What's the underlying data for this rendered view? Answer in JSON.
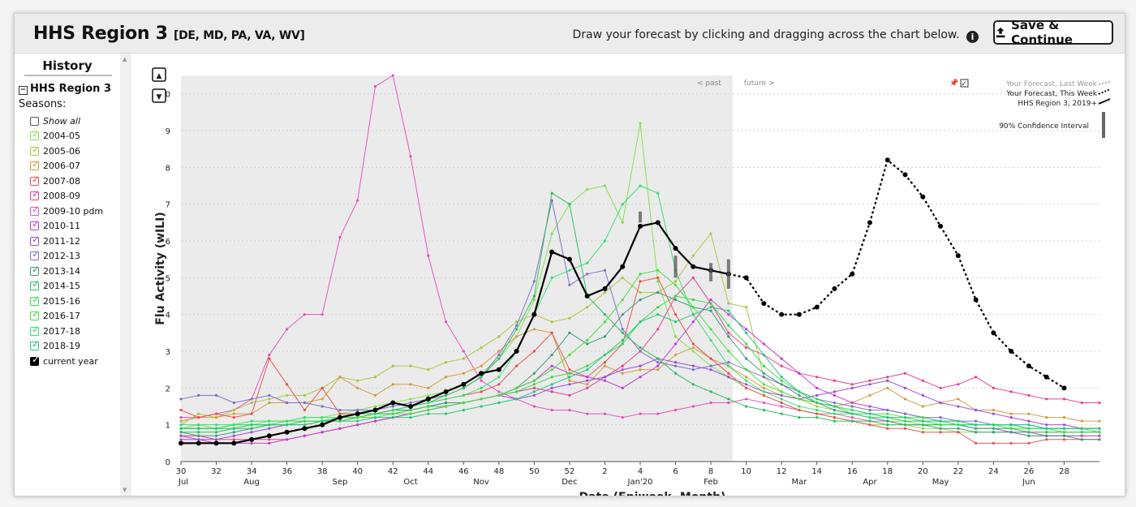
{
  "header": {
    "title": "HHS Region 3",
    "states": "[DE, MD, PA, VA, WV]",
    "instruction": "Draw your forecast by clicking and dragging across the chart below.",
    "save_label": "Save & Continue"
  },
  "sidebar": {
    "title": "History",
    "region": "HHS Region 3",
    "seasons_label": "Seasons:",
    "show_all": "Show all",
    "seasons": [
      {
        "label": "2004-05",
        "color": "#7fe04a",
        "checked": true
      },
      {
        "label": "2005-06",
        "color": "#a6c83c",
        "checked": true
      },
      {
        "label": "2006-07",
        "color": "#d49a3a",
        "checked": true
      },
      {
        "label": "2007-08",
        "color": "#e8504a",
        "checked": true
      },
      {
        "label": "2008-09",
        "color": "#e83c8c",
        "checked": true
      },
      {
        "label": "2009-10 pdm",
        "color": "#e64fc0",
        "checked": true
      },
      {
        "label": "2010-11",
        "color": "#c03ad8",
        "checked": true
      },
      {
        "label": "2011-12",
        "color": "#9b4ad8",
        "checked": true
      },
      {
        "label": "2012-13",
        "color": "#7a6ec8",
        "checked": true
      },
      {
        "label": "2013-14",
        "color": "#3a9a78",
        "checked": true
      },
      {
        "label": "2014-15",
        "color": "#28c058",
        "checked": true
      },
      {
        "label": "2015-16",
        "color": "#3ad848",
        "checked": true
      },
      {
        "label": "2016-17",
        "color": "#46e03c",
        "checked": true
      },
      {
        "label": "2017-18",
        "color": "#2ee070",
        "checked": true
      },
      {
        "label": "2018-19",
        "color": "#22c87a",
        "checked": true
      },
      {
        "label": "current year",
        "color": "#000000",
        "checked": true
      }
    ]
  },
  "chart_data": {
    "type": "line",
    "title": "",
    "xlabel": "Date (Epiweek, Month)",
    "ylabel": "Flu Activity (wILI)",
    "ylim": [
      0,
      10.5
    ],
    "xlim": [
      30,
      29
    ],
    "grid": "horizontal dotted",
    "x_ticks": [
      "30",
      "32",
      "34",
      "36",
      "38",
      "40",
      "42",
      "44",
      "46",
      "48",
      "50",
      "52",
      "2",
      "4",
      "6",
      "8",
      "10",
      "12",
      "14",
      "16",
      "18",
      "20",
      "22",
      "24",
      "26",
      "28"
    ],
    "month_labels": [
      "Jul",
      "Aug",
      "Sep",
      "Oct",
      "Nov",
      "Dec",
      "Jan'20",
      "Feb",
      "Mar",
      "Apr",
      "May",
      "Jun"
    ],
    "y_ticks": [
      0,
      1,
      2,
      3,
      4,
      5,
      6,
      7,
      8,
      9,
      10
    ],
    "region_labels": {
      "past": "< past",
      "future": "future >"
    },
    "legend": {
      "last_week": "Your Forecast, Last Week",
      "this_week": "Your Forecast, This Week",
      "observed": "HHS Region 3, 2019+",
      "ci": "90% Confidence Interval"
    },
    "series": [
      {
        "name": "2009-10 pdm",
        "color": "#e64fc0",
        "values": [
          1.2,
          1.2,
          1.3,
          1.4,
          1.7,
          2.9,
          3.6,
          4.0,
          4.0,
          6.1,
          7.1,
          10.2,
          10.5,
          8.3,
          5.6,
          3.8,
          3.0,
          2.2,
          1.9,
          1.7,
          1.5,
          1.4,
          1.4,
          1.3,
          1.3,
          1.2,
          1.3,
          1.3,
          1.4,
          1.5,
          1.6,
          1.6,
          1.7,
          1.6,
          1.5,
          1.4,
          1.3,
          1.3,
          1.2,
          1.1,
          1.1,
          1.0,
          1.0,
          1.0,
          1.0,
          1.0,
          1.0,
          1.0,
          0.9,
          0.9,
          0.9,
          0.9,
          0.9
        ]
      },
      {
        "name": "2004-05",
        "color": "#7fe04a",
        "values": [
          0.9,
          1.0,
          0.9,
          1.0,
          1.0,
          1.1,
          1.1,
          1.2,
          1.2,
          1.3,
          1.4,
          1.5,
          1.6,
          1.7,
          1.8,
          1.9,
          2.1,
          2.4,
          2.8,
          3.4,
          4.4,
          6.2,
          7.0,
          7.4,
          7.5,
          6.5,
          9.2,
          4.9,
          3.4,
          3.0,
          2.6,
          2.3,
          2.0,
          1.8,
          1.6,
          1.4,
          1.3,
          1.2,
          1.1,
          1.0,
          1.0,
          1.0,
          0.9,
          0.9,
          0.8,
          0.8,
          0.8,
          0.8,
          0.7,
          0.7,
          0.7,
          0.7,
          0.7
        ]
      },
      {
        "name": "2005-06",
        "color": "#a6c83c",
        "values": [
          1.0,
          1.3,
          1.2,
          1.4,
          1.6,
          1.7,
          1.8,
          1.8,
          2.0,
          2.3,
          2.2,
          2.3,
          2.6,
          2.6,
          2.5,
          2.7,
          2.8,
          3.1,
          3.4,
          3.8,
          4.0,
          3.8,
          3.9,
          4.2,
          4.6,
          5.0,
          4.6,
          4.6,
          4.9,
          5.6,
          6.2,
          4.3,
          4.2,
          2.3,
          1.9,
          1.7,
          1.5,
          1.4,
          1.3,
          1.2,
          1.1,
          1.1,
          1.0,
          1.0,
          1.0,
          0.9,
          0.9,
          0.9,
          0.8,
          0.8,
          0.8,
          0.8,
          0.8
        ]
      },
      {
        "name": "2006-07",
        "color": "#d49a3a",
        "values": [
          1.1,
          1.2,
          1.2,
          1.3,
          1.3,
          1.6,
          1.6,
          1.6,
          1.7,
          2.3,
          2.0,
          1.8,
          2.1,
          2.1,
          2.0,
          2.3,
          2.4,
          2.6,
          3.0,
          3.4,
          3.6,
          3.5,
          2.2,
          2.1,
          2.6,
          2.4,
          2.5,
          2.5,
          2.9,
          3.1,
          2.8,
          2.6,
          2.3,
          2.0,
          1.8,
          1.7,
          1.6,
          1.5,
          1.6,
          1.8,
          2.0,
          1.7,
          1.5,
          1.6,
          1.7,
          1.4,
          1.4,
          1.3,
          1.3,
          1.2,
          1.2,
          1.1,
          1.1
        ]
      },
      {
        "name": "2007-08",
        "color": "#e8504a",
        "values": [
          1.4,
          1.2,
          1.3,
          1.2,
          1.3,
          2.8,
          2.1,
          1.4,
          2.0,
          1.3,
          1.3,
          1.3,
          1.4,
          1.5,
          1.6,
          1.7,
          1.8,
          1.9,
          2.1,
          2.6,
          3.0,
          3.5,
          2.5,
          2.3,
          2.7,
          3.2,
          4.9,
          5.0,
          4.0,
          3.2,
          2.8,
          2.4,
          2.0,
          1.8,
          1.6,
          1.4,
          1.3,
          1.2,
          1.1,
          1.0,
          0.9,
          0.9,
          0.8,
          0.8,
          0.8,
          0.5,
          0.5,
          0.5,
          0.5,
          0.6,
          0.6,
          0.6,
          0.6
        ]
      },
      {
        "name": "2008-09",
        "color": "#e83c8c",
        "values": [
          0.7,
          0.7,
          0.6,
          0.6,
          0.6,
          0.6,
          0.6,
          0.7,
          0.8,
          0.9,
          1.0,
          1.1,
          1.2,
          1.3,
          1.4,
          1.5,
          1.6,
          1.7,
          1.8,
          1.9,
          2.0,
          1.9,
          1.8,
          2.0,
          2.3,
          2.6,
          3.0,
          3.6,
          4.5,
          5.0,
          4.3,
          3.5,
          3.1,
          2.9,
          2.6,
          2.4,
          2.3,
          2.2,
          2.1,
          2.2,
          2.3,
          2.4,
          2.2,
          2.0,
          2.1,
          2.3,
          2.0,
          1.9,
          1.8,
          1.7,
          1.7,
          1.6,
          1.6
        ]
      },
      {
        "name": "2010-11",
        "color": "#c03ad8",
        "values": [
          0.7,
          0.6,
          0.5,
          0.5,
          0.5,
          0.5,
          0.6,
          0.7,
          0.8,
          0.9,
          1.0,
          1.1,
          1.2,
          1.3,
          1.4,
          1.5,
          1.6,
          1.7,
          1.8,
          2.0,
          2.2,
          2.6,
          2.4,
          2.3,
          2.2,
          2.0,
          2.3,
          2.6,
          3.2,
          3.8,
          4.4,
          4.0,
          3.6,
          3.2,
          2.8,
          2.4,
          2.0,
          1.8,
          1.6,
          1.5,
          1.4,
          1.3,
          1.2,
          1.1,
          1.0,
          0.9,
          0.9,
          0.8,
          0.8,
          0.7,
          0.7,
          0.7,
          0.7
        ]
      },
      {
        "name": "2011-12",
        "color": "#9b4ad8",
        "values": [
          0.6,
          0.6,
          0.6,
          0.7,
          0.8,
          0.9,
          1.0,
          1.0,
          1.1,
          1.1,
          1.2,
          1.3,
          1.3,
          1.4,
          1.5,
          1.6,
          1.6,
          1.7,
          1.8,
          1.7,
          1.8,
          2.0,
          2.1,
          2.2,
          2.3,
          2.5,
          2.6,
          2.8,
          2.7,
          2.6,
          2.5,
          2.3,
          2.1,
          1.9,
          1.8,
          1.7,
          1.8,
          1.9,
          2.0,
          2.1,
          2.2,
          2.0,
          1.8,
          1.6,
          1.5,
          1.4,
          1.3,
          1.2,
          1.1,
          1.0,
          1.0,
          0.9,
          0.9
        ]
      },
      {
        "name": "2012-13",
        "color": "#7a6ec8",
        "values": [
          1.7,
          1.8,
          1.8,
          1.6,
          1.7,
          1.8,
          1.6,
          1.6,
          1.5,
          1.4,
          1.4,
          1.4,
          1.5,
          1.6,
          1.7,
          1.8,
          2.0,
          2.3,
          2.9,
          3.7,
          4.9,
          7.1,
          4.8,
          5.1,
          5.2,
          3.6,
          3.0,
          2.7,
          2.6,
          2.5,
          2.6,
          2.7,
          2.5,
          2.3,
          2.1,
          1.9,
          1.7,
          1.6,
          1.5,
          1.4,
          1.4,
          1.3,
          1.2,
          1.2,
          1.1,
          1.1,
          1.0,
          1.0,
          1.0,
          0.9,
          0.9,
          0.9,
          0.9
        ]
      },
      {
        "name": "2013-14",
        "color": "#3a9a78",
        "values": [
          0.8,
          0.7,
          0.7,
          0.8,
          0.9,
          1.0,
          1.0,
          1.1,
          1.1,
          1.2,
          1.2,
          1.3,
          1.4,
          1.4,
          1.5,
          1.6,
          1.6,
          1.7,
          1.8,
          2.0,
          2.4,
          2.9,
          3.5,
          3.2,
          3.4,
          4.0,
          4.4,
          4.6,
          4.4,
          4.2,
          4.1,
          3.4,
          2.8,
          2.4,
          2.1,
          1.8,
          1.6,
          1.4,
          1.3,
          1.2,
          1.1,
          1.0,
          1.0,
          0.9,
          0.9,
          0.8,
          0.8,
          0.8,
          0.7,
          0.7,
          0.7,
          0.6,
          0.6
        ]
      },
      {
        "name": "2014-15",
        "color": "#28c058",
        "values": [
          0.8,
          0.8,
          0.8,
          0.9,
          0.9,
          1.0,
          1.0,
          1.1,
          1.1,
          1.2,
          1.2,
          1.3,
          1.4,
          1.5,
          1.6,
          1.8,
          2.0,
          2.3,
          2.8,
          3.6,
          4.5,
          7.3,
          7.0,
          4.5,
          4.0,
          3.5,
          3.1,
          2.8,
          2.4,
          2.1,
          1.9,
          1.7,
          1.5,
          1.4,
          1.3,
          1.2,
          1.2,
          1.1,
          1.1,
          1.1,
          1.0,
          1.0,
          1.0,
          1.0,
          1.0,
          0.9,
          0.9,
          0.9,
          0.8,
          0.8,
          0.8,
          0.8,
          0.8
        ]
      },
      {
        "name": "2015-16",
        "color": "#3ad848",
        "values": [
          0.9,
          0.9,
          0.9,
          1.0,
          1.0,
          1.0,
          1.1,
          1.1,
          1.1,
          1.2,
          1.2,
          1.3,
          1.3,
          1.4,
          1.5,
          1.5,
          1.6,
          1.7,
          1.8,
          1.9,
          2.1,
          2.3,
          2.4,
          2.6,
          2.9,
          3.2,
          3.8,
          4.2,
          4.5,
          4.4,
          4.3,
          3.7,
          3.2,
          2.6,
          2.2,
          1.9,
          1.7,
          1.5,
          1.4,
          1.3,
          1.2,
          1.1,
          1.1,
          1.0,
          1.0,
          1.0,
          1.0,
          0.9,
          0.9,
          0.9,
          0.8,
          0.8,
          0.8
        ]
      },
      {
        "name": "2016-17",
        "color": "#46e03c",
        "values": [
          0.9,
          0.9,
          0.9,
          1.0,
          1.0,
          1.0,
          1.0,
          1.1,
          1.1,
          1.1,
          1.2,
          1.2,
          1.3,
          1.3,
          1.4,
          1.5,
          1.6,
          1.7,
          1.8,
          2.0,
          2.2,
          2.5,
          2.9,
          3.3,
          3.8,
          4.4,
          5.1,
          5.2,
          4.8,
          4.2,
          3.6,
          3.0,
          2.5,
          2.1,
          1.9,
          1.7,
          1.6,
          1.5,
          1.4,
          1.3,
          1.3,
          1.2,
          1.2,
          1.1,
          1.1,
          1.0,
          1.0,
          1.0,
          0.9,
          0.9,
          0.9,
          0.9,
          0.8
        ]
      },
      {
        "name": "2017-18",
        "color": "#2ee070",
        "values": [
          1.0,
          1.0,
          1.0,
          1.0,
          1.1,
          1.1,
          1.1,
          1.2,
          1.2,
          1.2,
          1.3,
          1.3,
          1.4,
          1.5,
          1.6,
          1.7,
          1.8,
          2.0,
          2.3,
          3.0,
          4.0,
          5.0,
          5.2,
          5.4,
          6.0,
          7.0,
          7.5,
          7.3,
          5.2,
          4.0,
          3.3,
          2.6,
          2.2,
          1.9,
          1.7,
          1.5,
          1.4,
          1.3,
          1.3,
          1.2,
          1.2,
          1.1,
          1.1,
          1.1,
          1.0,
          1.0,
          1.0,
          1.0,
          0.9,
          0.9,
          0.9,
          0.9,
          0.9
        ]
      },
      {
        "name": "2018-19",
        "color": "#22c87a",
        "values": [
          0.9,
          0.9,
          0.9,
          0.9,
          1.0,
          1.0,
          1.0,
          1.0,
          1.1,
          1.1,
          1.1,
          1.2,
          1.2,
          1.2,
          1.3,
          1.3,
          1.4,
          1.5,
          1.6,
          1.7,
          1.9,
          2.1,
          2.3,
          2.5,
          2.9,
          3.3,
          3.8,
          4.0,
          3.8,
          4.0,
          4.2,
          4.1,
          3.5,
          2.9,
          2.3,
          1.9,
          1.6,
          1.5,
          1.3,
          1.3,
          1.2,
          1.2,
          1.1,
          1.1,
          1.1,
          1.0,
          1.0,
          1.0,
          1.0,
          0.9,
          0.9,
          0.9,
          0.9
        ]
      },
      {
        "name": "current year",
        "color": "#000000",
        "values": [
          0.5,
          0.5,
          0.5,
          0.5,
          0.6,
          0.7,
          0.8,
          0.9,
          1.0,
          1.2,
          1.3,
          1.4,
          1.6,
          1.5,
          1.7,
          1.9,
          2.1,
          2.4,
          2.5,
          3.0,
          4.0,
          5.7,
          5.5,
          4.5,
          4.7,
          5.3,
          6.4,
          6.5,
          5.8,
          5.3,
          5.2,
          5.1
        ]
      },
      {
        "name": "Your Forecast, This Week",
        "color": "#000000",
        "dashed": true,
        "values": [
          null,
          null,
          null,
          null,
          null,
          null,
          null,
          null,
          null,
          null,
          null,
          null,
          null,
          null,
          null,
          null,
          null,
          null,
          null,
          null,
          null,
          null,
          null,
          null,
          null,
          null,
          null,
          null,
          null,
          null,
          null,
          5.1,
          5.0,
          4.3,
          4.0,
          4.0,
          4.2,
          4.7,
          5.1,
          6.5,
          8.2,
          7.8,
          7.2,
          6.4,
          5.6,
          4.4,
          3.5,
          3.0,
          2.6,
          2.3,
          2.0
        ]
      }
    ],
    "confidence_intervals": [
      {
        "week_index": 26,
        "low": 6.5,
        "high": 6.8
      },
      {
        "week_index": 28,
        "low": 5.0,
        "high": 5.6
      },
      {
        "week_index": 30,
        "low": 4.9,
        "high": 5.4
      },
      {
        "week_index": 31,
        "low": 4.7,
        "high": 5.5
      }
    ]
  }
}
